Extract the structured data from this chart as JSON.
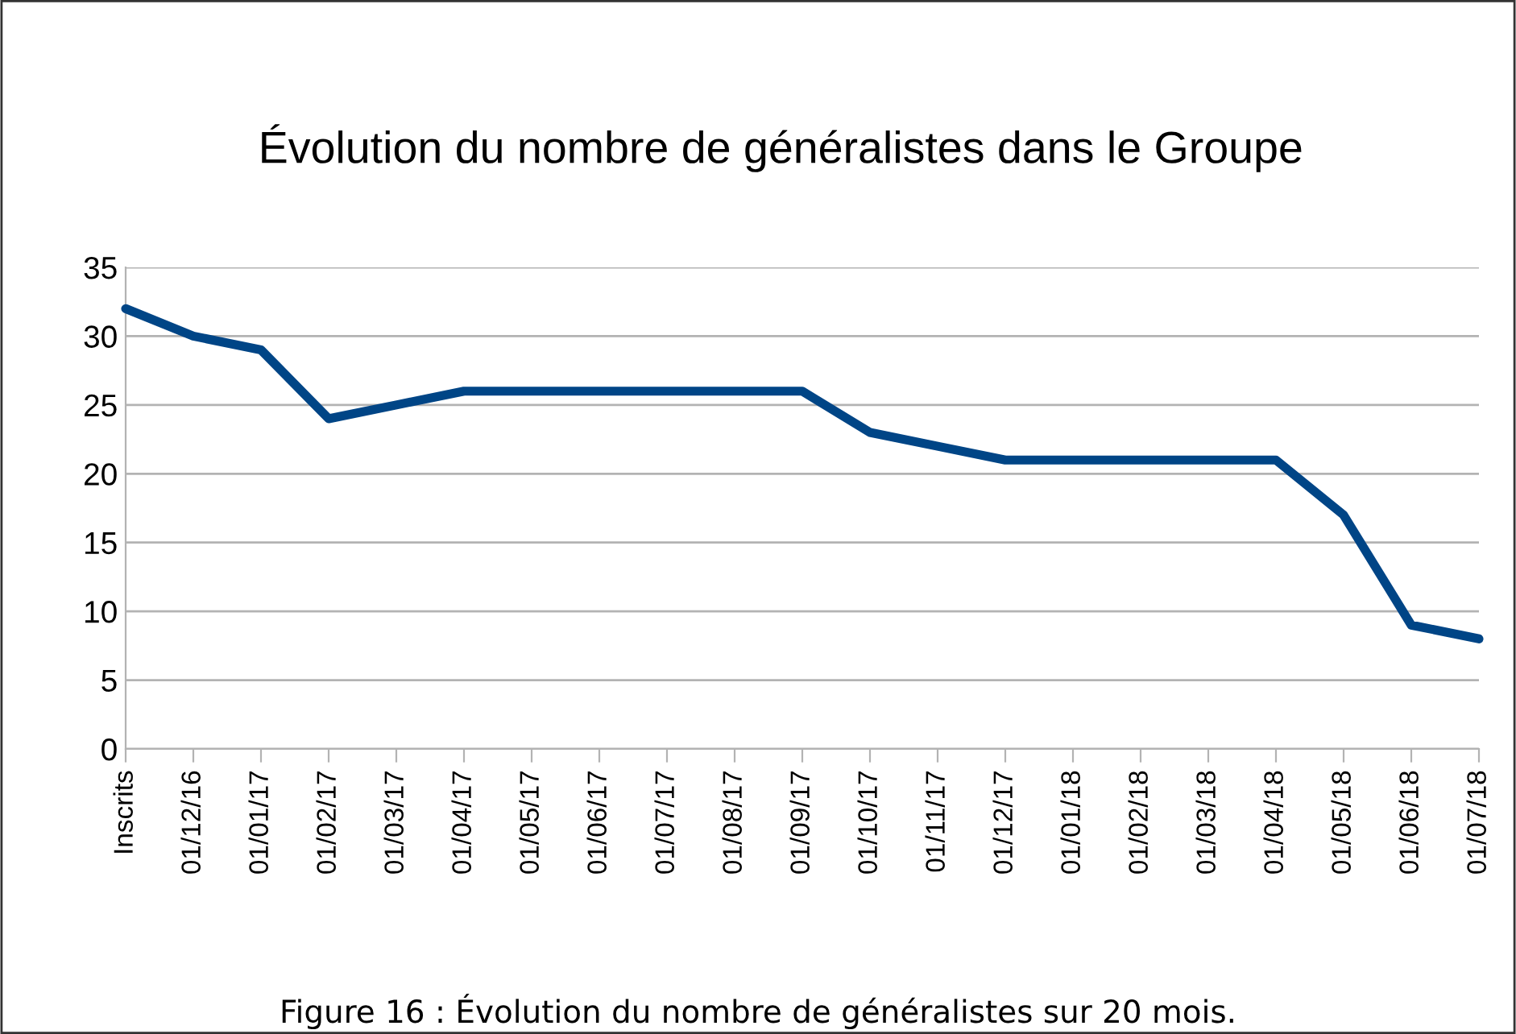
{
  "chart_data": {
    "type": "line",
    "title": "Évolution du nombre de généralistes dans le Groupe",
    "categories": [
      "Inscrits",
      "01/12/16",
      "01/01/17",
      "01/02/17",
      "01/03/17",
      "01/04/17",
      "01/05/17",
      "01/06/17",
      "01/07/17",
      "01/08/17",
      "01/09/17",
      "01/10/17",
      "01/11/17",
      "01/12/17",
      "01/01/18",
      "01/02/18",
      "01/03/18",
      "01/04/18",
      "01/05/18",
      "01/06/18",
      "01/07/18"
    ],
    "series": [
      {
        "color": "#004586",
        "values": [
          32,
          30,
          29,
          24,
          25,
          26,
          26,
          26,
          26,
          26,
          26,
          23,
          22,
          21,
          21,
          21,
          21,
          21,
          17,
          9,
          8
        ]
      }
    ],
    "ylim": [
      0,
      35
    ],
    "yticks": [
      0,
      5,
      10,
      15,
      20,
      25,
      30,
      35
    ],
    "grid": "y",
    "legend": false,
    "marker": "none",
    "line_style": "solid",
    "annotations": [
      "Figure 16 : Évolution du nombre de généralistes sur 20 mois."
    ]
  }
}
